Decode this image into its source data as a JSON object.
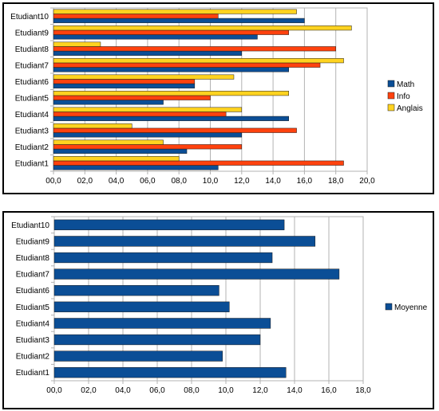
{
  "chart_data": [
    {
      "type": "bar",
      "orientation": "horizontal",
      "categories": [
        "Etudiant1",
        "Etudiant2",
        "Etudiant3",
        "Etudiant4",
        "Etudiant5",
        "Etudiant6",
        "Etudiant7",
        "Etudiant8",
        "Etudiant9",
        "Etudiant10"
      ],
      "series": [
        {
          "name": "Math",
          "color": "#0b4e96",
          "values": [
            10.5,
            8.5,
            12,
            15,
            7,
            9,
            15,
            12,
            13,
            16
          ]
        },
        {
          "name": "Info",
          "color": "#ff420e",
          "values": [
            18.5,
            12,
            15.5,
            11,
            10,
            9,
            17,
            18,
            15,
            10.5
          ]
        },
        {
          "name": "Anglais",
          "color": "#ffd320",
          "values": [
            8,
            7,
            5,
            12,
            15,
            11.5,
            18.5,
            3,
            19,
            15.5
          ]
        }
      ],
      "xlim": [
        0,
        20
      ],
      "ticks": [
        "00,0",
        "02,0",
        "04,0",
        "06,0",
        "08,0",
        "10,0",
        "12,0",
        "14,0",
        "16,0",
        "18,0",
        "20,0"
      ],
      "grid": true,
      "legend": "right"
    },
    {
      "type": "bar",
      "orientation": "horizontal",
      "categories": [
        "Etudiant1",
        "Etudiant2",
        "Etudiant3",
        "Etudiant4",
        "Etudiant5",
        "Etudiant6",
        "Etudiant7",
        "Etudiant8",
        "Etudiant9",
        "Etudiant10"
      ],
      "series": [
        {
          "name": "Moyenne",
          "color": "#0b4e96",
          "values": [
            13.5,
            9.8,
            12,
            12.6,
            10.2,
            9.6,
            16.6,
            12.7,
            15.2,
            13.4
          ]
        }
      ],
      "xlim": [
        0,
        18
      ],
      "ticks": [
        "00,0",
        "02,0",
        "04,0",
        "06,0",
        "08,0",
        "10,0",
        "12,0",
        "14,0",
        "16,0",
        "18,0"
      ],
      "grid": true,
      "legend": "right"
    }
  ]
}
